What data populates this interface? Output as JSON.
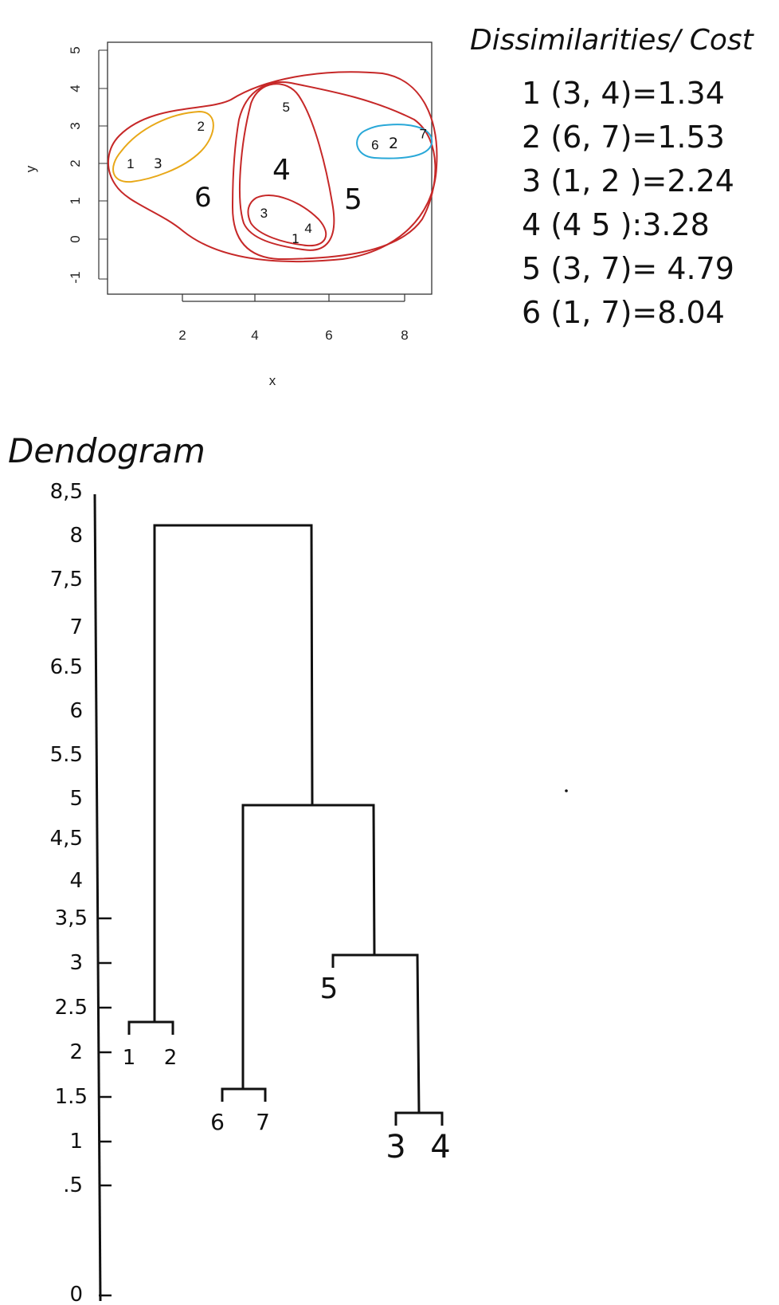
{
  "chart_data": [
    {
      "type": "scatter",
      "xlabel": "x",
      "ylabel": "y",
      "xlim": [
        0.2,
        9.0
      ],
      "ylim": [
        -1.2,
        5.2
      ],
      "x_ticks": [
        "2",
        "4",
        "6",
        "8"
      ],
      "y_ticks": [
        "-1",
        "0",
        "1",
        "2",
        "3",
        "4",
        "5"
      ],
      "points": [
        {
          "label": "1",
          "x": 0.6,
          "y": 2.0
        },
        {
          "label": "2",
          "x": 2.5,
          "y": 3.0
        },
        {
          "label": "3",
          "x": 4.2,
          "y": 0.7
        },
        {
          "label": "4",
          "x": 5.4,
          "y": 0.3
        },
        {
          "label": "5",
          "x": 4.8,
          "y": 3.5
        },
        {
          "label": "6",
          "x": 7.2,
          "y": 2.5
        },
        {
          "label": "7",
          "x": 8.5,
          "y": 2.8
        }
      ],
      "cluster_annotations": [
        {
          "order": "1",
          "color": "#c62828"
        },
        {
          "order": "2",
          "color": "#29a8d8"
        },
        {
          "order": "3",
          "color": "#e8a818"
        },
        {
          "order": "4",
          "color": "#c62828"
        },
        {
          "order": "5",
          "color": "#c62828"
        },
        {
          "order": "6",
          "color": "#c62828"
        }
      ]
    },
    {
      "type": "dendrogram",
      "title": "Dendogram",
      "y_ticks": [
        "8,5",
        "8",
        "7,5",
        "7",
        "6.5",
        "6",
        "5.5",
        "5",
        "4,5",
        "4",
        "3,5",
        "3",
        "2.5",
        "2",
        "1.5",
        "1",
        ".5",
        "0"
      ],
      "leaves": [
        "1",
        "2",
        "6",
        "7",
        "5",
        "3",
        "4"
      ]
    }
  ],
  "dissimilarities": {
    "title": "Dissimilarities/ Cost",
    "rows": [
      "1 (3, 4)=1.34",
      "2 (6, 7)=1.53",
      "3 (1, 2 )=2.24",
      "4 (4 5 ):3.28",
      "5 (3, 7)= 4.79",
      "6 (1, 7)=8.04"
    ]
  }
}
